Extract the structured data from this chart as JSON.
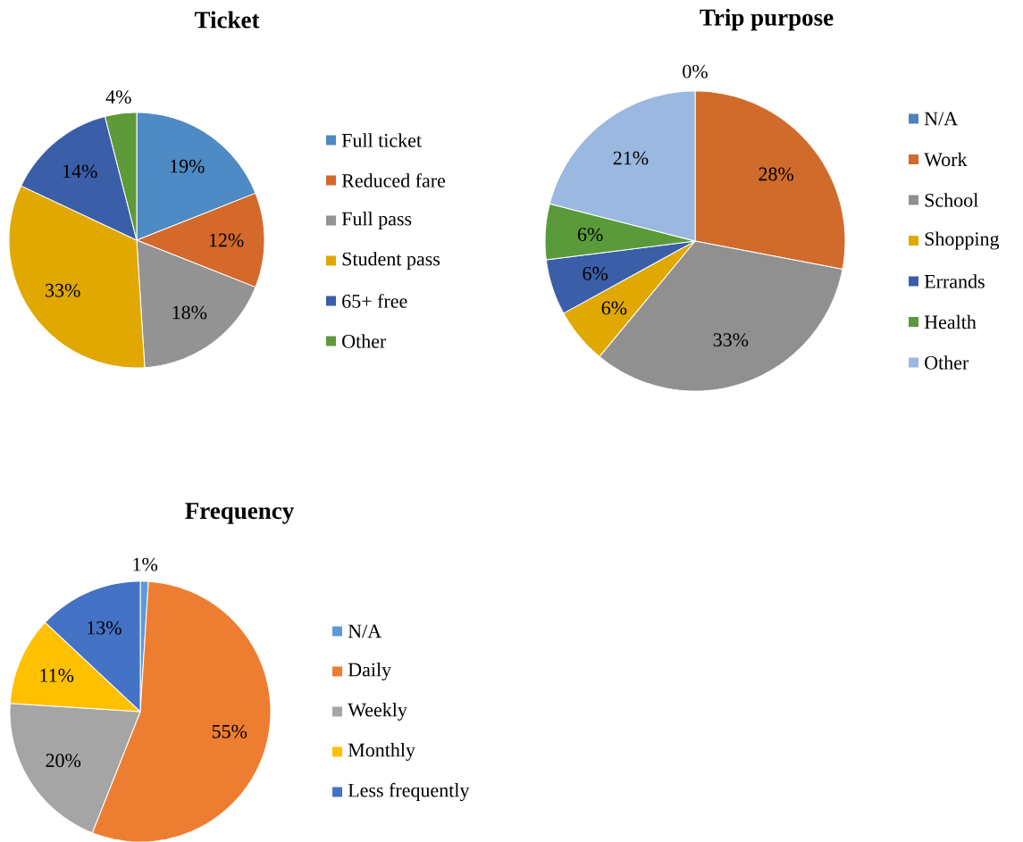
{
  "chart_data": [
    {
      "type": "pie",
      "title": "Ticket",
      "legend": "right",
      "categories": [
        "Full ticket",
        "Reduced fare",
        "Full pass",
        "Student pass",
        "65+ free",
        "Other"
      ],
      "values": [
        19,
        12,
        18,
        33,
        14,
        4
      ],
      "value_labels": [
        "19%",
        "12%",
        "18%",
        "33%",
        "14%",
        "4%"
      ],
      "colors": [
        "#4e8ac4",
        "#d4692b",
        "#939393",
        "#e0a800",
        "#3a5ea8",
        "#5f9a3a"
      ]
    },
    {
      "type": "pie",
      "title": "Trip purpose",
      "legend": "right",
      "categories": [
        "N/A",
        "Work",
        "School",
        "Shopping",
        "Errands",
        "Health",
        "Other"
      ],
      "values": [
        0,
        28,
        33,
        6,
        6,
        6,
        21
      ],
      "value_labels": [
        "0%",
        "28%",
        "33%",
        "6%",
        "6%",
        "6%",
        "21%"
      ],
      "colors": [
        "#4f81bd",
        "#d06b2c",
        "#909090",
        "#e0a800",
        "#3a5fa8",
        "#5b9a3a",
        "#9ab8e0"
      ]
    },
    {
      "type": "pie",
      "title": "Frequency",
      "legend": "right",
      "categories": [
        "N/A",
        "Daily",
        "Weekly",
        "Monthly",
        "Less frequently"
      ],
      "values": [
        1,
        55,
        20,
        11,
        13
      ],
      "value_labels": [
        "1%",
        "55%",
        "20%",
        "11%",
        "13%"
      ],
      "colors": [
        "#5b9bd5",
        "#ed7d31",
        "#a5a5a5",
        "#ffc000",
        "#4472c4"
      ]
    }
  ]
}
